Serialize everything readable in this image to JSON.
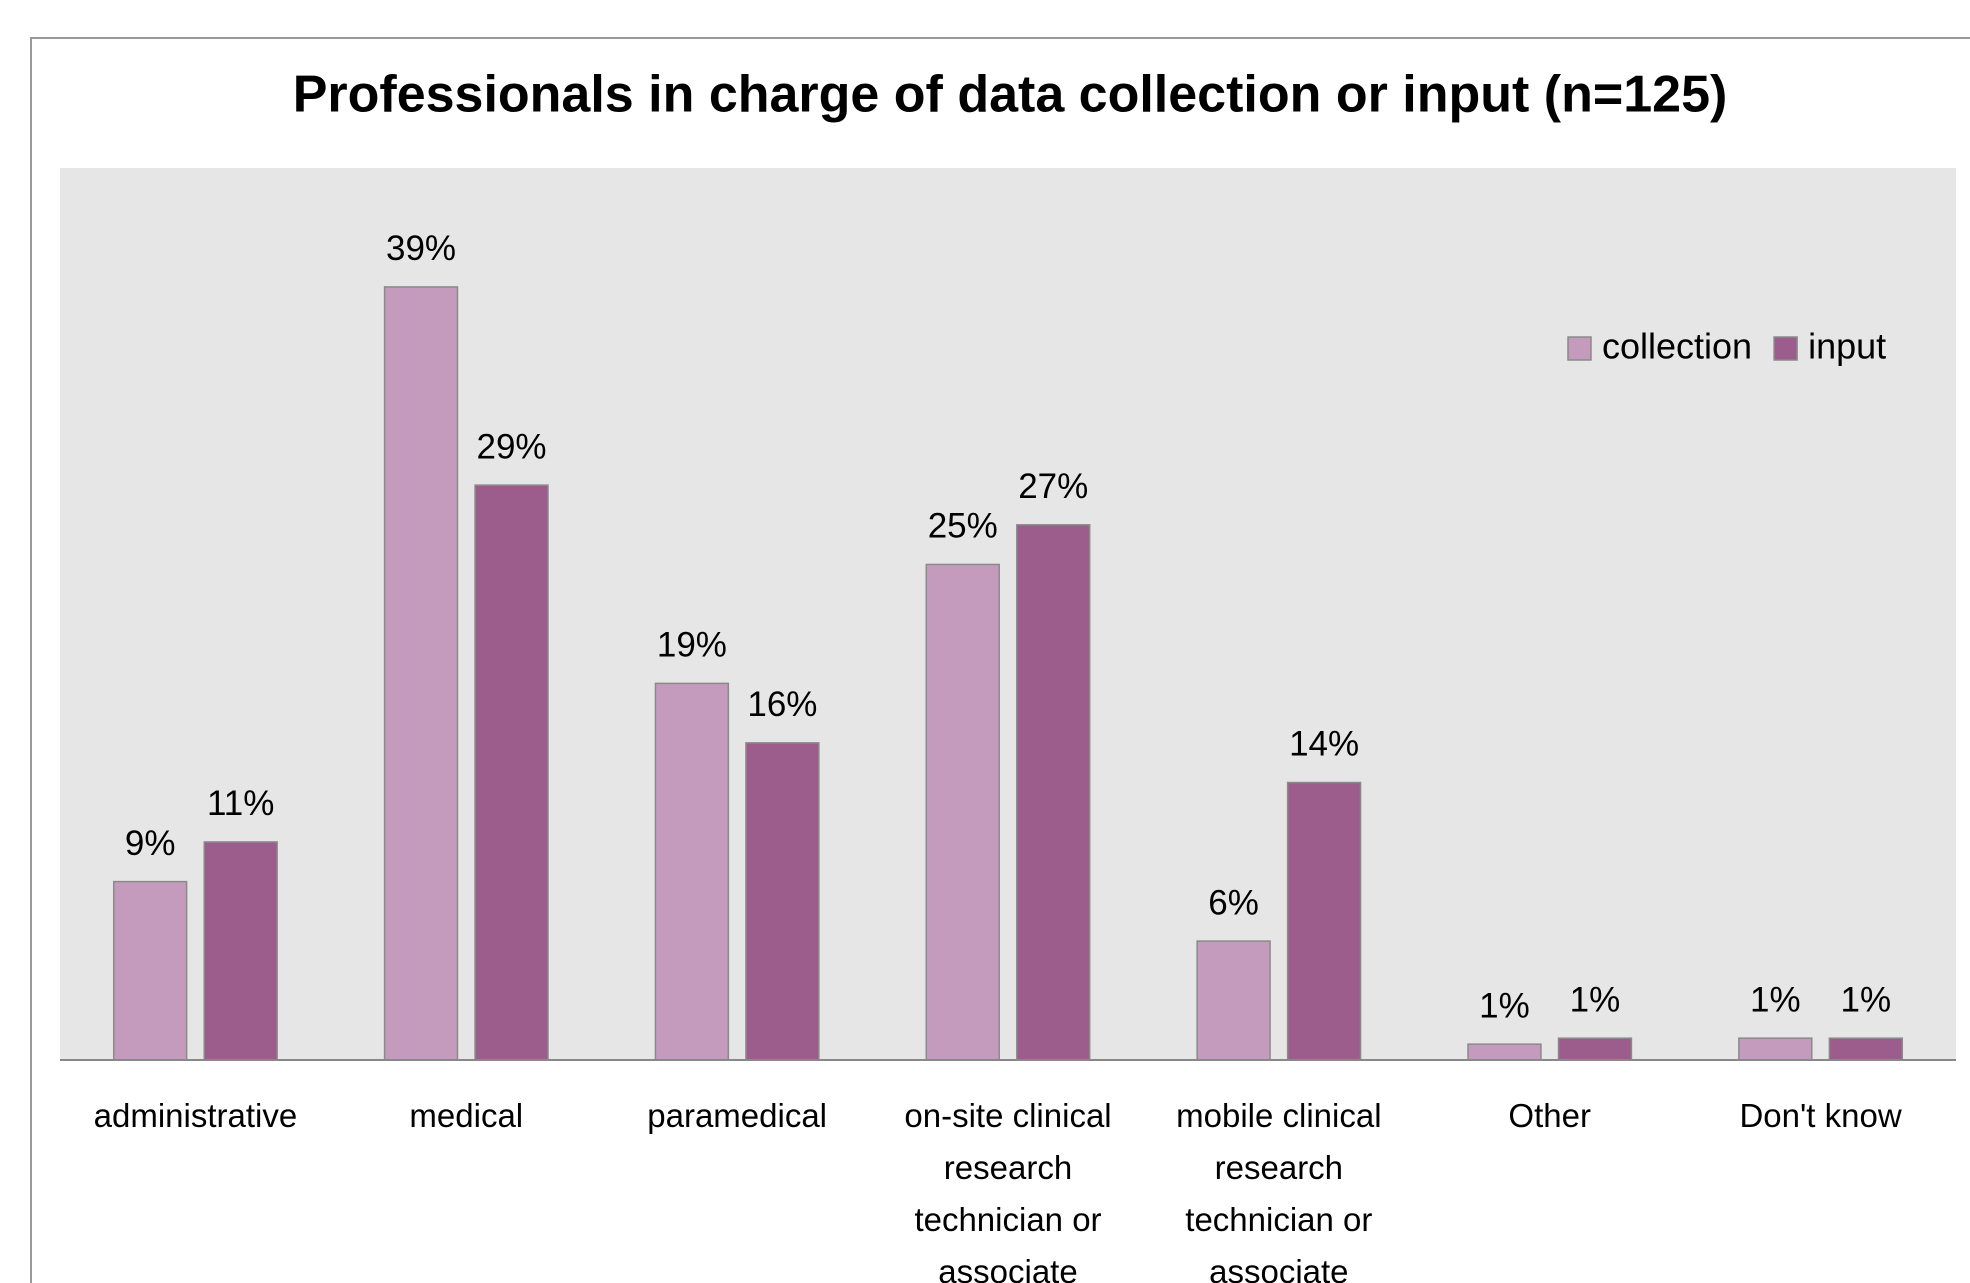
{
  "chart_data": {
    "type": "bar",
    "title": "Professionals in charge of data collection or input (n=125)",
    "categories": [
      "administrative",
      "medical",
      "paramedical",
      "on-site clinical research technician or associate",
      "mobile clinical research technician or associate",
      "Other",
      "Don't know"
    ],
    "series": [
      {
        "name": "collection",
        "color": "#c59bbd",
        "values": [
          9,
          39,
          19,
          25,
          6,
          0.8,
          1.1
        ],
        "value_labels": [
          "9%",
          "39%",
          "19%",
          "25%",
          "6%",
          "1%",
          "1%"
        ]
      },
      {
        "name": "input",
        "color": "#9c5d8c",
        "values": [
          11,
          29,
          16,
          27,
          14,
          1.1,
          1.1
        ],
        "value_labels": [
          "11%",
          "29%",
          "16%",
          "27%",
          "14%",
          "1%",
          "1%"
        ]
      }
    ],
    "ylim": [
      0,
      45
    ],
    "legend": "top-right"
  }
}
